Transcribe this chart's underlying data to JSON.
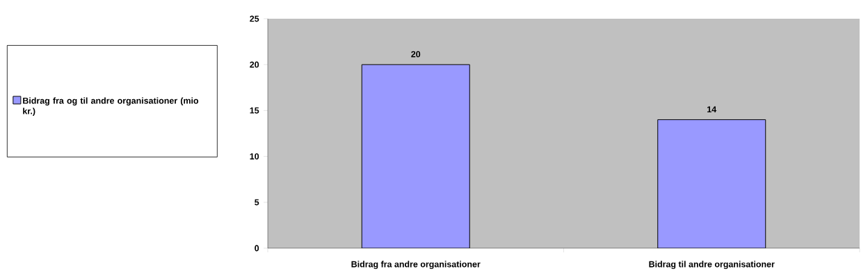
{
  "chart_data": {
    "type": "bar",
    "categories": [
      "Bidrag fra andre organisationer",
      "Bidrag til andre organisationer"
    ],
    "series": [
      {
        "name": "Bidrag fra og til andre organisationer (mio kr.)",
        "color": "#9999ff",
        "values": [
          20,
          14
        ]
      }
    ],
    "ylim": [
      0,
      25
    ],
    "yticks": [
      0,
      5,
      10,
      15,
      20,
      25
    ],
    "data_labels": true,
    "legend": "left",
    "grid": false
  }
}
